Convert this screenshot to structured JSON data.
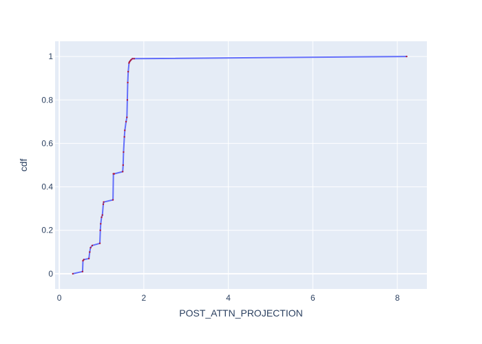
{
  "chart_data": {
    "type": "line",
    "title": "",
    "xlabel": "POST_ATTN_PROJECTION",
    "ylabel": "cdf",
    "xlim": [
      -0.1,
      8.7
    ],
    "ylim": [
      -0.07,
      1.07
    ],
    "x_ticks": [
      0,
      2,
      4,
      6,
      8
    ],
    "y_ticks": [
      0,
      0.2,
      0.4,
      0.6,
      0.8,
      1
    ],
    "x_tick_labels": [
      "0",
      "2",
      "4",
      "6",
      "8"
    ],
    "y_tick_labels": [
      "0",
      "0.2",
      "0.4",
      "0.6",
      "0.8",
      "1"
    ],
    "grid": true,
    "legend": "none",
    "colors": {
      "plot_bg": "#e5ecf6",
      "grid": "#ffffff",
      "line": "#636efa",
      "markers": "#b0163a",
      "text": "#2a3f5f"
    },
    "series": [
      {
        "x": [
          0.32,
          0.55,
          0.56,
          0.58,
          0.7,
          0.72,
          0.74,
          0.78,
          0.96,
          0.97,
          0.98,
          1.0,
          1.02,
          1.04,
          1.05,
          1.27,
          1.28,
          1.3,
          1.5,
          1.51,
          1.52,
          1.54,
          1.55,
          1.58,
          1.6,
          1.61,
          1.62,
          1.63,
          1.65,
          1.66,
          1.68,
          1.7,
          1.73,
          1.77,
          8.22
        ],
        "y": [
          0.0,
          0.01,
          0.06,
          0.065,
          0.07,
          0.1,
          0.12,
          0.13,
          0.14,
          0.2,
          0.23,
          0.26,
          0.27,
          0.32,
          0.33,
          0.34,
          0.46,
          0.46,
          0.47,
          0.5,
          0.56,
          0.63,
          0.66,
          0.7,
          0.72,
          0.8,
          0.88,
          0.93,
          0.97,
          0.975,
          0.98,
          0.985,
          0.99,
          0.99,
          1.0
        ]
      }
    ]
  }
}
